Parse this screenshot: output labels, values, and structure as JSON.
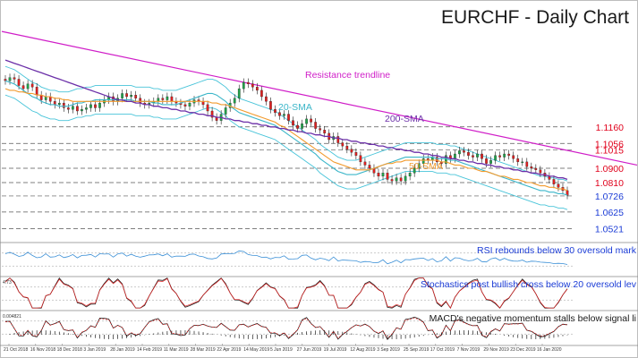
{
  "chart_data": {
    "type": "candlestick",
    "title": "EURCHF - Daily Chart",
    "x_ticks": [
      "21 Oct 2018",
      "16 Nov 2018",
      "18 Dec 2018",
      "3 Jan 2019",
      "28 Jan 2019",
      "14 Feb 2019",
      "11 Mar 2019",
      "28 Mar 2019",
      "22 Apr 2019",
      "14 May 2019",
      "5 Jun 2019",
      "27 Jun 2019",
      "19 Jul 2019",
      "12 Aug 2019",
      "3 Sep 2019",
      "25 Sep 2019",
      "17 Oct 2019",
      "7 Nov 2019",
      "29 Nov 2019",
      "23 Dec 2019",
      "16 Jan 2020"
    ],
    "y_range": [
      1.045,
      1.18
    ],
    "levels": [
      {
        "label": "1.1160",
        "value": 1.116,
        "color": "#e0001b"
      },
      {
        "label": "1.1056",
        "value": 1.1056,
        "color": "#e0001b"
      },
      {
        "label": "1.1015",
        "value": 1.1015,
        "color": "#e0001b"
      },
      {
        "label": "1.0900",
        "value": 1.09,
        "color": "#e0001b"
      },
      {
        "label": "1.0810",
        "value": 1.081,
        "color": "#e0001b"
      },
      {
        "label": "1.0726",
        "value": 1.0726,
        "color": "#1a3bd6"
      },
      {
        "label": "1.0625",
        "value": 1.0625,
        "color": "#1a3bd6"
      },
      {
        "label": "1.0521",
        "value": 1.0521,
        "color": "#1a3bd6"
      }
    ],
    "close": [
      1.145,
      1.147,
      1.146,
      1.142,
      1.14,
      1.143,
      1.141,
      1.136,
      1.133,
      1.135,
      1.132,
      1.13,
      1.131,
      1.128,
      1.127,
      1.129,
      1.126,
      1.127,
      1.128,
      1.13,
      1.128,
      1.131,
      1.133,
      1.135,
      1.132,
      1.134,
      1.137,
      1.135,
      1.136,
      1.134,
      1.131,
      1.13,
      1.131,
      1.132,
      1.134,
      1.133,
      1.135,
      1.132,
      1.131,
      1.13,
      1.129,
      1.131,
      1.133,
      1.132,
      1.13,
      1.126,
      1.122,
      1.12,
      1.124,
      1.128,
      1.131,
      1.134,
      1.14,
      1.144,
      1.143,
      1.141,
      1.139,
      1.135,
      1.132,
      1.127,
      1.125,
      1.123,
      1.124,
      1.12,
      1.117,
      1.115,
      1.118,
      1.121,
      1.119,
      1.115,
      1.114,
      1.112,
      1.108,
      1.11,
      1.106,
      1.104,
      1.102,
      1.1,
      1.098,
      1.094,
      1.092,
      1.09,
      1.087,
      1.085,
      1.087,
      1.083,
      1.082,
      1.084,
      1.082,
      1.085,
      1.087,
      1.09,
      1.093,
      1.096,
      1.095,
      1.097,
      1.094,
      1.093,
      1.098,
      1.096,
      1.099,
      1.101,
      1.1,
      1.098,
      1.097,
      1.099,
      1.096,
      1.093,
      1.095,
      1.098,
      1.097,
      1.099,
      1.098,
      1.096,
      1.094,
      1.094,
      1.091,
      1.09,
      1.089,
      1.087,
      1.085,
      1.083,
      1.08,
      1.078,
      1.076,
      1.073
    ],
    "series": [
      {
        "name": "20-SMA",
        "color": "#3bb6c9",
        "values": [
          1.145,
          1.144,
          1.143,
          1.141,
          1.139,
          1.137,
          1.135,
          1.134,
          1.132,
          1.131,
          1.13,
          1.13,
          1.129,
          1.129,
          1.129,
          1.13,
          1.131,
          1.131,
          1.132,
          1.132,
          1.133,
          1.133,
          1.133,
          1.133,
          1.133,
          1.133,
          1.133,
          1.133,
          1.133,
          1.132,
          1.132,
          1.132,
          1.132,
          1.131,
          1.131,
          1.13,
          1.13,
          1.13,
          1.13,
          1.131,
          1.132,
          1.133,
          1.134,
          1.135,
          1.136,
          1.137,
          1.137,
          1.136,
          1.134,
          1.132,
          1.129,
          1.127,
          1.125,
          1.124,
          1.123,
          1.122,
          1.121,
          1.12,
          1.119,
          1.118,
          1.117,
          1.115,
          1.113,
          1.111,
          1.109,
          1.107,
          1.105,
          1.103,
          1.101,
          1.099,
          1.096,
          1.094,
          1.092,
          1.09,
          1.088,
          1.087,
          1.086,
          1.086,
          1.086,
          1.087,
          1.088,
          1.089,
          1.09,
          1.091,
          1.092,
          1.093,
          1.094,
          1.095,
          1.096,
          1.097,
          1.097,
          1.097,
          1.097,
          1.097,
          1.097,
          1.097,
          1.096,
          1.096,
          1.096,
          1.095,
          1.095,
          1.094,
          1.093,
          1.092,
          1.091,
          1.09,
          1.089,
          1.088,
          1.087,
          1.086,
          1.085,
          1.084,
          1.083,
          1.082,
          1.081,
          1.08,
          1.079,
          1.078,
          1.077,
          1.076,
          1.076,
          1.075,
          1.075,
          1.074,
          1.074,
          1.073
        ]
      },
      {
        "name": "50-SMA",
        "color": "#f29b2e",
        "values": [
          1.14,
          1.139,
          1.139,
          1.138,
          1.138,
          1.137,
          1.137,
          1.136,
          1.136,
          1.135,
          1.135,
          1.134,
          1.134,
          1.133,
          1.133,
          1.132,
          1.132,
          1.132,
          1.132,
          1.132,
          1.132,
          1.132,
          1.132,
          1.132,
          1.132,
          1.132,
          1.132,
          1.132,
          1.132,
          1.132,
          1.132,
          1.132,
          1.132,
          1.132,
          1.132,
          1.132,
          1.132,
          1.132,
          1.132,
          1.132,
          1.132,
          1.132,
          1.132,
          1.132,
          1.132,
          1.132,
          1.131,
          1.131,
          1.13,
          1.13,
          1.129,
          1.128,
          1.127,
          1.126,
          1.125,
          1.124,
          1.123,
          1.122,
          1.121,
          1.12,
          1.119,
          1.117,
          1.116,
          1.114,
          1.112,
          1.11,
          1.108,
          1.106,
          1.104,
          1.102,
          1.1,
          1.098,
          1.096,
          1.094,
          1.093,
          1.092,
          1.091,
          1.09,
          1.089,
          1.089,
          1.089,
          1.089,
          1.09,
          1.091,
          1.092,
          1.093,
          1.093,
          1.094,
          1.094,
          1.095,
          1.095,
          1.095,
          1.095,
          1.095,
          1.095,
          1.095,
          1.095,
          1.094,
          1.094,
          1.093,
          1.092,
          1.092,
          1.091,
          1.09,
          1.09,
          1.089,
          1.088,
          1.088,
          1.087,
          1.086,
          1.085,
          1.085,
          1.084,
          1.083,
          1.083,
          1.082,
          1.081,
          1.081,
          1.08,
          1.079,
          1.079,
          1.078,
          1.078,
          1.077,
          1.077,
          1.076
        ]
      },
      {
        "name": "200-SMA",
        "color": "#6b2fa8",
        "values": [
          1.158,
          1.157,
          1.156,
          1.155,
          1.154,
          1.153,
          1.152,
          1.151,
          1.15,
          1.149,
          1.148,
          1.147,
          1.146,
          1.145,
          1.144,
          1.143,
          1.142,
          1.141,
          1.14,
          1.139,
          1.138,
          1.137,
          1.136,
          1.135,
          1.134,
          1.133,
          1.133,
          1.132,
          1.132,
          1.131,
          1.131,
          1.13,
          1.13,
          1.129,
          1.129,
          1.128,
          1.128,
          1.127,
          1.127,
          1.126,
          1.126,
          1.125,
          1.125,
          1.124,
          1.124,
          1.123,
          1.123,
          1.122,
          1.122,
          1.121,
          1.121,
          1.12,
          1.12,
          1.119,
          1.119,
          1.118,
          1.118,
          1.117,
          1.117,
          1.116,
          1.116,
          1.115,
          1.115,
          1.114,
          1.114,
          1.113,
          1.113,
          1.112,
          1.112,
          1.111,
          1.111,
          1.11,
          1.11,
          1.109,
          1.109,
          1.108,
          1.108,
          1.107,
          1.107,
          1.106,
          1.106,
          1.105,
          1.105,
          1.104,
          1.104,
          1.103,
          1.103,
          1.102,
          1.102,
          1.101,
          1.101,
          1.1,
          1.1,
          1.099,
          1.099,
          1.098,
          1.098,
          1.097,
          1.097,
          1.096,
          1.096,
          1.095,
          1.095,
          1.094,
          1.094,
          1.093,
          1.093,
          1.092,
          1.092,
          1.091,
          1.091,
          1.09,
          1.09,
          1.089,
          1.089,
          1.088,
          1.088,
          1.087,
          1.087,
          1.086,
          1.086,
          1.085,
          1.085,
          1.084,
          1.084,
          1.083
        ]
      }
    ],
    "resistance_trendline": {
      "label": "Resistance trendline",
      "start": 1.176,
      "end": 1.092
    },
    "annotations": [
      {
        "text": "Resistance trendline",
        "color": "#d01ec8"
      },
      {
        "text": "20-SMA",
        "color": "#3bb6c9"
      },
      {
        "text": "50-SMA",
        "color": "#f29b2e"
      },
      {
        "text": "200-SMA",
        "color": "#6b2fa8"
      }
    ],
    "panels": [
      {
        "name": "RSI",
        "caption": "RSI rebounds below 30 oversold mark",
        "caption_color": "#1a3bd6",
        "line_color": "#3a8fd6"
      },
      {
        "name": "Stochastics",
        "caption": "Stochastics post bullish cross below 20 oversold lev",
        "caption_color": "#1a3bd6",
        "axis_labels": [
          "4.73"
        ]
      },
      {
        "name": "MACD",
        "caption": "MACD's negative momentum stalls below signal li",
        "caption_color": "#1a1a1a",
        "axis_labels": [
          "0.004821"
        ]
      }
    ]
  }
}
